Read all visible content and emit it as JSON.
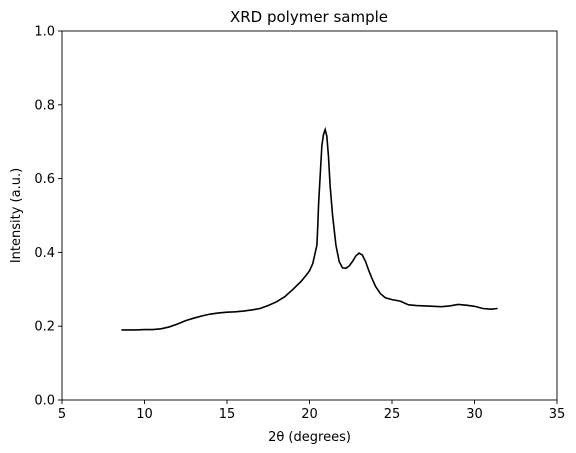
{
  "chart_data": {
    "type": "line",
    "title": "XRD polymer sample",
    "xlabel": "2θ (degrees)",
    "ylabel": "Intensity (a.u.)",
    "xlim": [
      5,
      35
    ],
    "ylim": [
      0,
      1.0
    ],
    "xticks": [
      5,
      10,
      15,
      20,
      25,
      30,
      35
    ],
    "xtick_labels": [
      "5",
      "10",
      "15",
      "20",
      "25",
      "30",
      "35"
    ],
    "yticks": [
      0.0,
      0.2,
      0.4,
      0.6,
      0.8,
      1.0
    ],
    "ytick_labels": [
      "0.0",
      "0.2",
      "0.4",
      "0.6",
      "0.8",
      "1.0"
    ],
    "grid": false,
    "line_color": "#000000",
    "series": [
      {
        "x": [
          8.6,
          9.0,
          9.5,
          10.0,
          10.5,
          11.0,
          11.5,
          12.0,
          12.5,
          13.0,
          13.5,
          14.0,
          14.5,
          15.0,
          15.5,
          16.0,
          16.5,
          17.0,
          17.5,
          18.0,
          18.5,
          19.0,
          19.5,
          19.8,
          20.0,
          20.2,
          20.35,
          20.45,
          20.5,
          20.55,
          20.65,
          20.75,
          20.85,
          20.95,
          21.05,
          21.15,
          21.25,
          21.4,
          21.6,
          21.8,
          22.0,
          22.2,
          22.4,
          22.6,
          22.8,
          23.0,
          23.2,
          23.4,
          23.6,
          23.8,
          24.0,
          24.3,
          24.6,
          25.0,
          25.5,
          26.0,
          26.5,
          27.0,
          27.5,
          28.0,
          28.5,
          29.0,
          29.5,
          30.0,
          30.5,
          31.0,
          31.4
        ],
        "y": [
          0.19,
          0.19,
          0.19,
          0.191,
          0.191,
          0.193,
          0.198,
          0.206,
          0.215,
          0.222,
          0.228,
          0.233,
          0.236,
          0.238,
          0.239,
          0.241,
          0.244,
          0.248,
          0.256,
          0.266,
          0.28,
          0.3,
          0.322,
          0.338,
          0.35,
          0.37,
          0.4,
          0.42,
          0.47,
          0.53,
          0.61,
          0.69,
          0.72,
          0.733,
          0.715,
          0.66,
          0.58,
          0.5,
          0.42,
          0.375,
          0.358,
          0.357,
          0.363,
          0.375,
          0.39,
          0.398,
          0.393,
          0.375,
          0.35,
          0.328,
          0.308,
          0.288,
          0.277,
          0.272,
          0.268,
          0.258,
          0.256,
          0.255,
          0.254,
          0.253,
          0.255,
          0.259,
          0.257,
          0.254,
          0.248,
          0.246,
          0.248
        ]
      }
    ]
  }
}
